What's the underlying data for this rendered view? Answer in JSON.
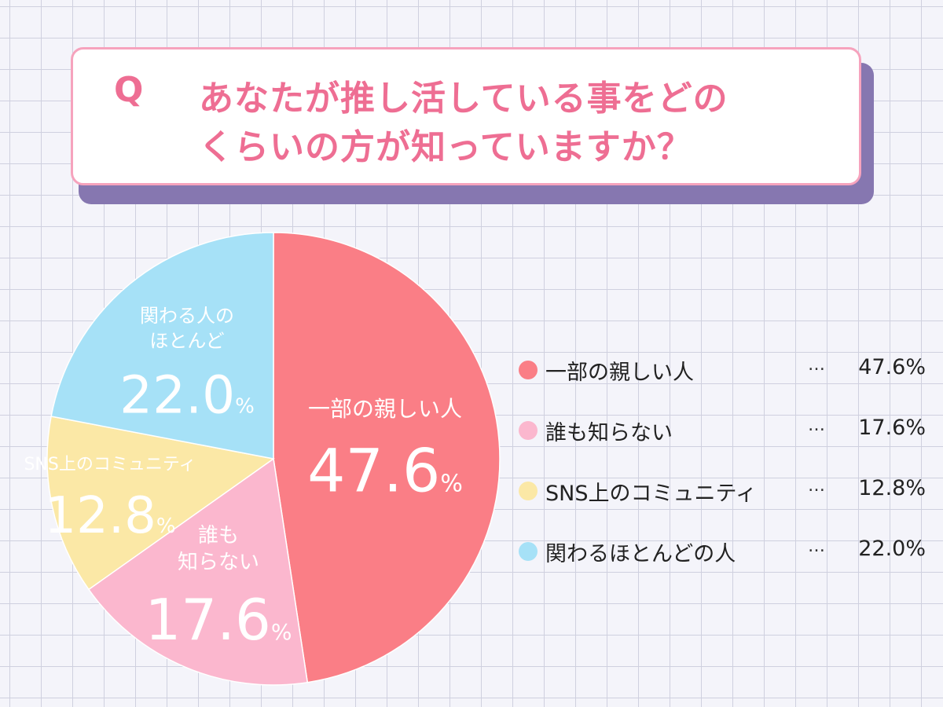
{
  "question": {
    "mark": "Q",
    "line1": "あなたが推し活している事をどの",
    "line2": "くらいの方が知っていますか？"
  },
  "chart_data": {
    "type": "pie",
    "unit": "%",
    "slices": [
      {
        "label": "一部の親しい人",
        "pie_label": [
          "一部の親しい人"
        ],
        "value": 47.6,
        "display": "47.6",
        "color": "#fa7e86"
      },
      {
        "label": "誰も知らない",
        "pie_label": [
          "誰も",
          "知らない"
        ],
        "value": 17.6,
        "display": "17.6",
        "color": "#fbb7ce"
      },
      {
        "label": "SNS上のコミュニティ",
        "pie_label": [
          "SNS上のコミュニティ"
        ],
        "value": 12.8,
        "display": "12.8",
        "color": "#fbe8a6"
      },
      {
        "label": "関わるほとんどの人",
        "pie_label": [
          "関わる人の",
          "ほとんど"
        ],
        "value": 22.0,
        "display": "22.0",
        "color": "#a6e1f7"
      }
    ]
  },
  "legend": {
    "items": [
      {
        "label": "一部の親しい人",
        "dots": "…",
        "value": "47.6%"
      },
      {
        "label": "誰も知らない",
        "dots": "…",
        "value": "17.6%"
      },
      {
        "label": "SNS上のコミュニティ",
        "dots": "…",
        "value": "12.8%"
      },
      {
        "label": "関わるほとんどの人",
        "dots": "…",
        "value": "22.0%"
      }
    ]
  }
}
